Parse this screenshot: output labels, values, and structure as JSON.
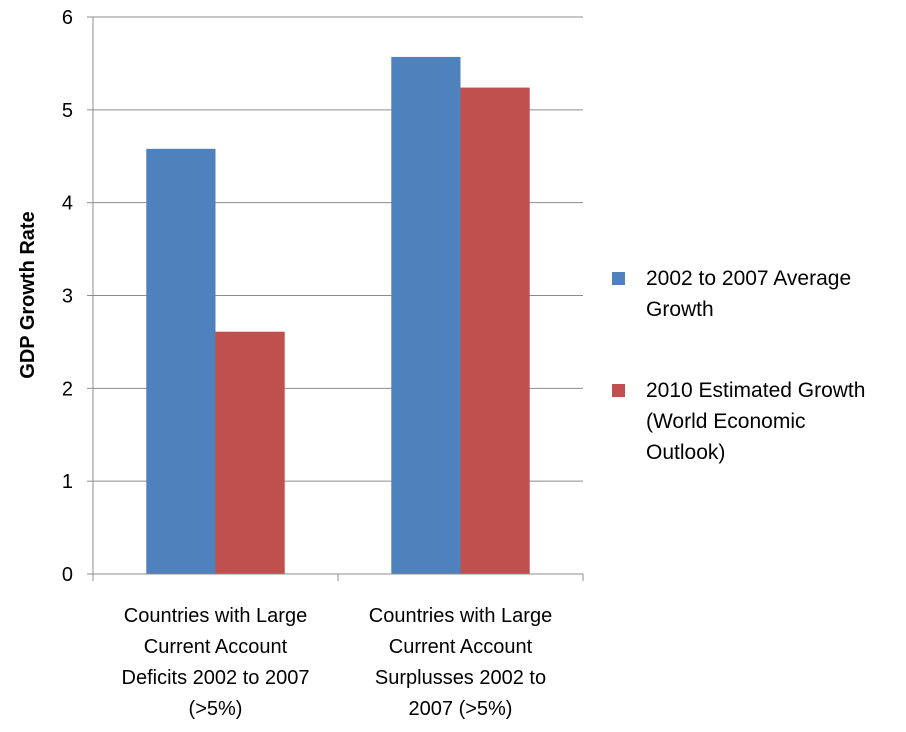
{
  "chart_data": {
    "type": "bar",
    "categories": [
      "Countries with Large Current Account Deficits 2002 to 2007 (>5%)",
      "Countries with Large Current Account Surplusses 2002 to 2007 (>5%)"
    ],
    "category_lines": [
      [
        "Countries with Large",
        "Current Account",
        "Deficits 2002 to 2007",
        "(>5%)"
      ],
      [
        "Countries with Large",
        "Current Account",
        "Surplusses 2002 to",
        "2007 (>5%)"
      ]
    ],
    "series": [
      {
        "name": "2002 to 2007 Average Growth",
        "name_lines": [
          "2002 to 2007 Average",
          "Growth"
        ],
        "color": "#4f81bd",
        "values": [
          4.58,
          5.57
        ]
      },
      {
        "name": "2010 Estimated Growth (World Economic Outlook)",
        "name_lines": [
          "2010 Estimated Growth",
          "(World Economic",
          "Outlook)"
        ],
        "color": "#c0504d",
        "values": [
          2.61,
          5.24
        ]
      }
    ],
    "ylabel": "GDP Growth Rate",
    "ylim": [
      0,
      6
    ],
    "yticks": [
      "0",
      "1",
      "2",
      "3",
      "4",
      "5",
      "6"
    ],
    "grid": true,
    "legend_position": "right"
  }
}
